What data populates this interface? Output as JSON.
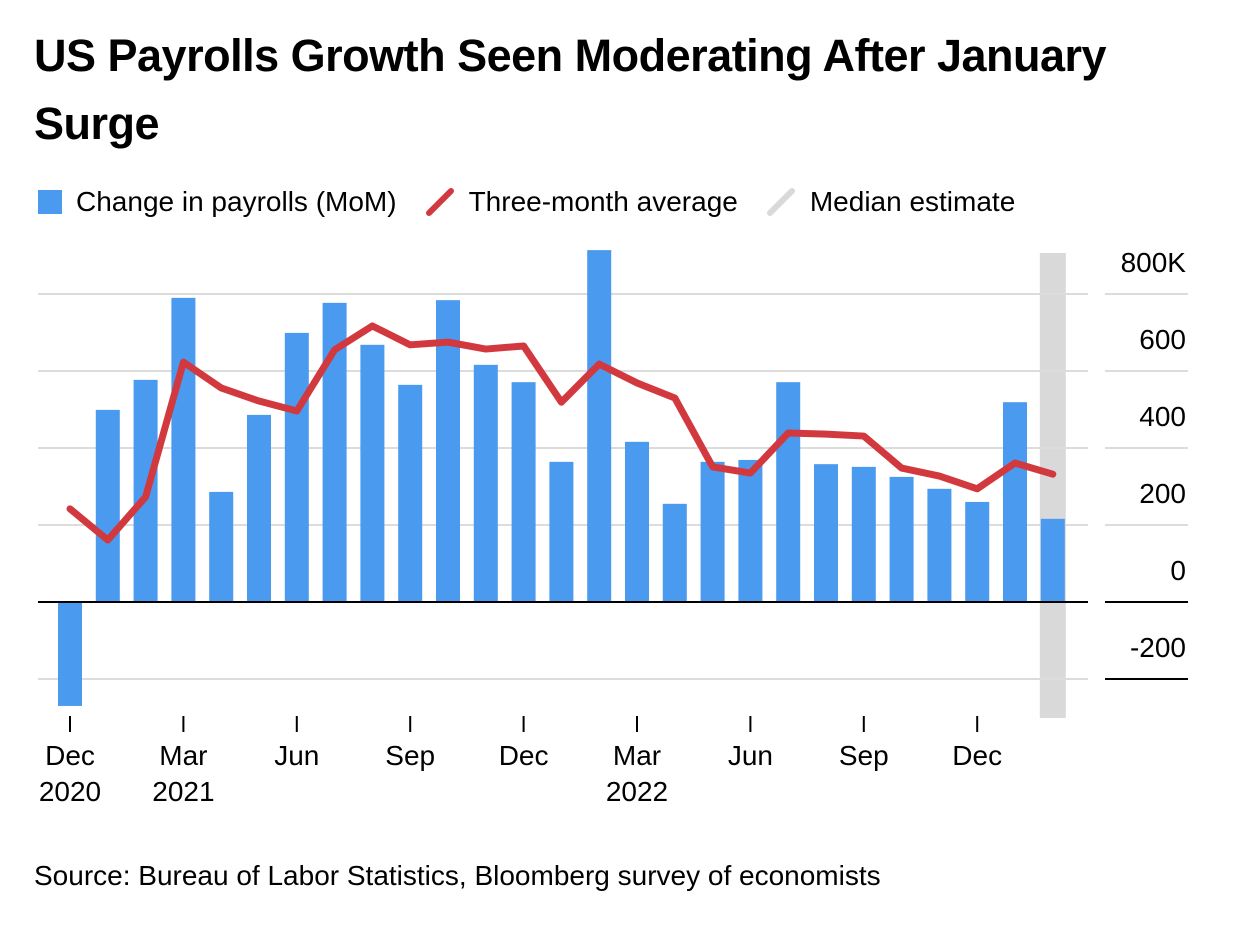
{
  "chart_data": {
    "type": "bar",
    "title": "US Payrolls Growth Seen Moderating After January Surge",
    "source": "Source: Bureau of Labor Statistics, Bloomberg survey of economists",
    "ylim": [
      -300,
      920
    ],
    "yticks": [
      -200,
      0,
      200,
      400,
      600,
      800
    ],
    "ytick_labels": [
      "-200",
      "0",
      "200",
      "400",
      "600",
      "800K"
    ],
    "grid": true,
    "legend_placement": "top",
    "x": [
      "Dec 2020",
      "Jan 2021",
      "Feb 2021",
      "Mar 2021",
      "Apr 2021",
      "May 2021",
      "Jun 2021",
      "Jul 2021",
      "Aug 2021",
      "Sep 2021",
      "Oct 2021",
      "Nov 2021",
      "Dec 2021",
      "Jan 2022",
      "Feb 2022",
      "Mar 2022",
      "Apr 2022",
      "May 2022",
      "Jun 2022",
      "Jul 2022",
      "Aug 2022",
      "Sep 2022",
      "Oct 2022",
      "Nov 2022",
      "Dec 2022",
      "Jan 2023",
      "Feb 2023"
    ],
    "xtick_labels": [
      {
        "index": 0,
        "line1": "Dec",
        "line2": "2020"
      },
      {
        "index": 3,
        "line1": "Mar",
        "line2": "2021"
      },
      {
        "index": 6,
        "line1": "Jun",
        "line2": ""
      },
      {
        "index": 9,
        "line1": "Sep",
        "line2": ""
      },
      {
        "index": 12,
        "line1": "Dec",
        "line2": ""
      },
      {
        "index": 15,
        "line1": "Mar",
        "line2": "2022"
      },
      {
        "index": 18,
        "line1": "Jun",
        "line2": ""
      },
      {
        "index": 21,
        "line1": "Sep",
        "line2": ""
      },
      {
        "index": 24,
        "line1": "Dec",
        "line2": ""
      }
    ],
    "series": [
      {
        "name": "Change in payrolls (MoM)",
        "type": "bar",
        "color": "#4a9af0",
        "values": [
          -270,
          499,
          577,
          790,
          286,
          486,
          699,
          777,
          668,
          564,
          784,
          616,
          571,
          364,
          914,
          416,
          255,
          364,
          369,
          571,
          358,
          351,
          325,
          294,
          260,
          519,
          216
        ]
      },
      {
        "name": "Three-month average",
        "type": "line",
        "color": "#d2393f",
        "values": [
          242,
          161,
          273,
          623,
          556,
          522,
          496,
          655,
          717,
          668,
          675,
          657,
          665,
          519,
          618,
          569,
          530,
          351,
          335,
          439,
          436,
          431,
          348,
          327,
          294,
          361,
          332
        ]
      },
      {
        "name": "Median estimate",
        "type": "shade",
        "color": "#d9d9d9",
        "index": 26
      }
    ]
  }
}
